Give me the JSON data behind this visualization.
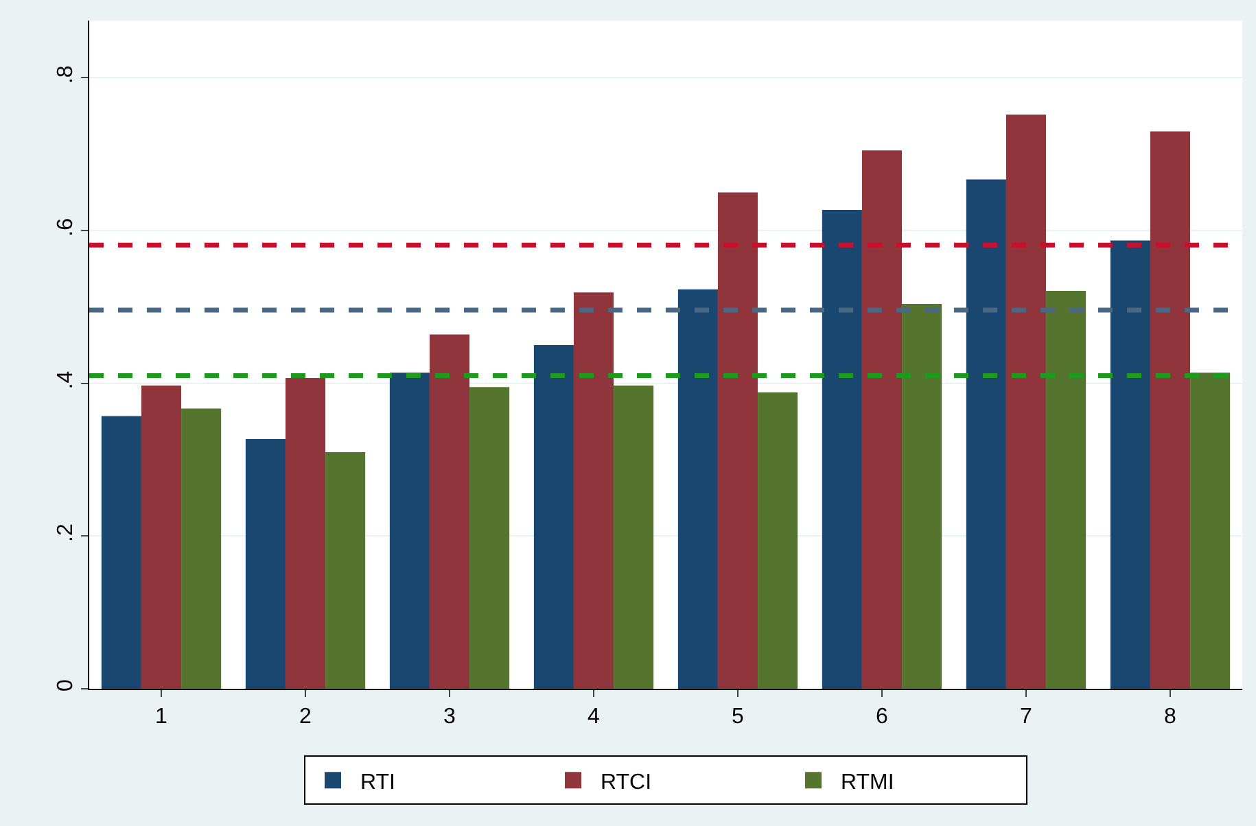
{
  "chart_data": {
    "type": "bar",
    "categories": [
      "1",
      "2",
      "3",
      "4",
      "5",
      "6",
      "7",
      "8"
    ],
    "series": [
      {
        "name": "RTI",
        "color": "#1a476f",
        "values": [
          0.357,
          0.327,
          0.414,
          0.45,
          0.523,
          0.627,
          0.667,
          0.587
        ]
      },
      {
        "name": "RTCI",
        "color": "#90353b",
        "values": [
          0.397,
          0.407,
          0.464,
          0.519,
          0.65,
          0.705,
          0.752,
          0.73
        ]
      },
      {
        "name": "RTMI",
        "color": "#55752f",
        "values": [
          0.367,
          0.31,
          0.395,
          0.397,
          0.388,
          0.504,
          0.521,
          0.414
        ]
      }
    ],
    "ylim": [
      0,
      0.875
    ],
    "yticks": [
      0,
      {
        "value": 0.2,
        "label": ".2"
      },
      {
        "value": 0.4,
        "label": ".4"
      },
      {
        "value": 0.6,
        "label": ".6"
      },
      {
        "value": 0.8,
        "label": ".8"
      }
    ],
    "ref_lines": [
      {
        "axis": "y",
        "value": 0.581,
        "color": "#c8102e",
        "line_style": "dashed"
      },
      {
        "axis": "y",
        "value": 0.496,
        "color": "#4a6784",
        "line_style": "dashed"
      },
      {
        "axis": "y",
        "value": 0.41,
        "color": "#1e9a1e",
        "line_style": "dashed"
      }
    ],
    "grid": "y",
    "legend": "bottom"
  }
}
